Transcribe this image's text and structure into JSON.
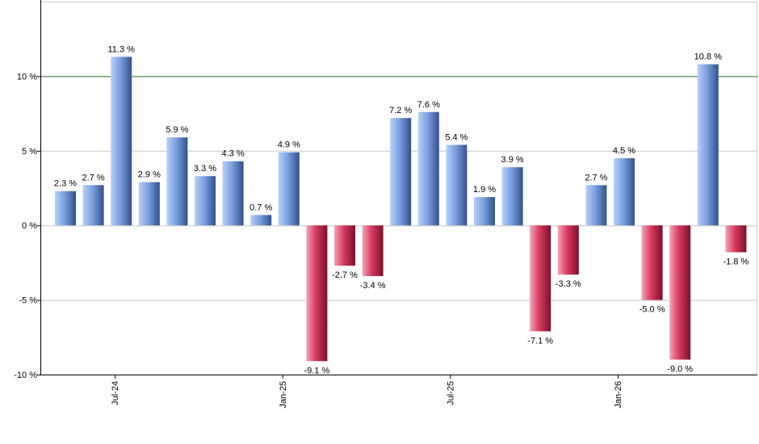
{
  "chart_data": {
    "type": "bar",
    "values": [
      2.3,
      2.7,
      11.3,
      2.9,
      5.9,
      3.3,
      4.3,
      0.7,
      4.9,
      -9.1,
      -2.7,
      -3.4,
      7.2,
      7.6,
      5.4,
      1.9,
      3.9,
      -7.1,
      -3.3,
      2.7,
      4.5,
      -5.0,
      -9.0,
      10.8,
      -1.8
    ],
    "data_labels": [
      "2.3 %",
      "2.7 %",
      "11.3 %",
      "2.9 %",
      "5.9 %",
      "3.3 %",
      "4.3 %",
      "0.7 %",
      "4.9 %",
      "-9.1 %",
      "-2.7 %",
      "-3.4 %",
      "7.2 %",
      "7.6 %",
      "5.4 %",
      "1.9 %",
      "3.9 %",
      "-7.1 %",
      "-3.3 %",
      "2.7 %",
      "4.5 %",
      "-5.0 %",
      "-9.0 %",
      "10.8 %",
      "-1.8 %"
    ],
    "x_ticks": [
      {
        "index": 2,
        "label": "Jul-24"
      },
      {
        "index": 8,
        "label": "Jan-25"
      },
      {
        "index": 14,
        "label": "Jul-25"
      },
      {
        "index": 20,
        "label": "Jan-26"
      }
    ],
    "y_ticks": [
      {
        "value": 10,
        "label": "10 %"
      },
      {
        "value": 5,
        "label": "5 %"
      },
      {
        "value": 0,
        "label": "0 %"
      },
      {
        "value": -5,
        "label": "-5 %"
      },
      {
        "value": -10,
        "label": "-10 %"
      }
    ],
    "ylim": [
      -10,
      15
    ],
    "reference_line": 10,
    "grid": true,
    "colors": {
      "positive": "#6f95d8",
      "negative": "#c8284e",
      "reference": "#2e7d32",
      "grid": "#c8c8c8"
    }
  }
}
